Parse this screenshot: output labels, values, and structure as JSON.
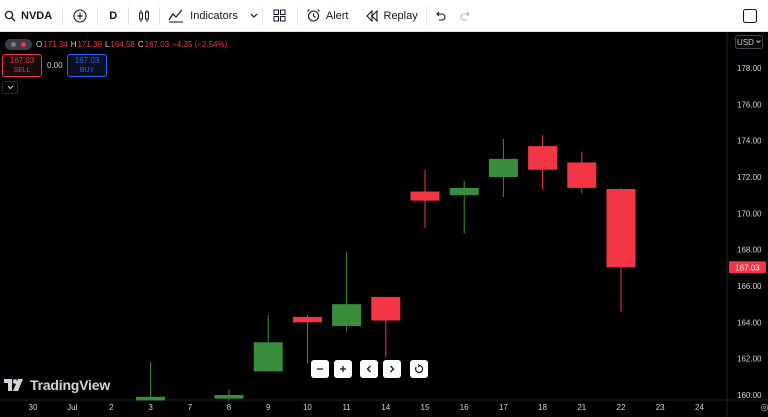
{
  "toolbar": {
    "symbol": "NVDA",
    "interval": "D",
    "indicators_label": "Indicators",
    "alert_label": "Alert",
    "replay_label": "Replay",
    "icons": [
      "search-icon",
      "plus-circle-icon",
      "candles-icon",
      "indicators-icon",
      "chevron-down-icon",
      "templates-icon",
      "alarm-clock-icon",
      "replay-icon",
      "undo-icon",
      "redo-icon",
      "fullscreen-icon"
    ]
  },
  "legend": {
    "o_key": "O",
    "o_val": "171.34",
    "h_key": "H",
    "h_val": "171.39",
    "l_key": "L",
    "l_val": "164.58",
    "c_key": "C",
    "c_val": "167.03",
    "change": "−4.35 (−2.54%)"
  },
  "trade": {
    "sell_price": "167.03",
    "sell_label": "SELL",
    "spread": "0.00",
    "buy_price": "167.03",
    "buy_label": "BUY"
  },
  "currency": "USD",
  "logo_text": "TradingView",
  "price_badge": "167.03",
  "colors": {
    "up": "#388e3c",
    "down": "#f23645",
    "background": "#000000",
    "text": "#d1d4dc"
  },
  "chart_data": {
    "type": "candlestick",
    "y_ticks": [
      178,
      176,
      174,
      172,
      170,
      168,
      166,
      164,
      162,
      160
    ],
    "ylim": [
      159.5,
      179.2
    ],
    "x_labels": [
      "30",
      "Jul",
      "2",
      "3",
      "7",
      "8",
      "9",
      "10",
      "11",
      "14",
      "15",
      "16",
      "17",
      "18",
      "21",
      "22",
      "23",
      "24"
    ],
    "candles": [
      {
        "label": "3",
        "o": 159.7,
        "h": 161.8,
        "l": 159.7,
        "c": 159.9
      },
      {
        "label": "8",
        "o": 159.8,
        "h": 160.3,
        "l": 159.7,
        "c": 160.0
      },
      {
        "label": "9",
        "o": 161.3,
        "h": 164.4,
        "l": 161.3,
        "c": 162.9
      },
      {
        "label": "10",
        "o": 164.3,
        "h": 164.4,
        "l": 161.7,
        "c": 164.0
      },
      {
        "label": "11",
        "o": 163.8,
        "h": 167.9,
        "l": 163.5,
        "c": 165.0
      },
      {
        "label": "14",
        "o": 165.4,
        "h": 165.4,
        "l": 162.1,
        "c": 164.1
      },
      {
        "label": "15",
        "o": 171.2,
        "h": 172.4,
        "l": 169.2,
        "c": 170.7
      },
      {
        "label": "16",
        "o": 171.0,
        "h": 171.8,
        "l": 168.9,
        "c": 171.4
      },
      {
        "label": "17",
        "o": 172.0,
        "h": 174.1,
        "l": 170.9,
        "c": 173.0
      },
      {
        "label": "18",
        "o": 173.7,
        "h": 174.3,
        "l": 171.3,
        "c": 172.4
      },
      {
        "label": "21",
        "o": 172.8,
        "h": 173.4,
        "l": 171.1,
        "c": 171.4
      },
      {
        "label": "22",
        "o": 171.34,
        "h": 171.39,
        "l": 164.58,
        "c": 167.03
      }
    ]
  }
}
